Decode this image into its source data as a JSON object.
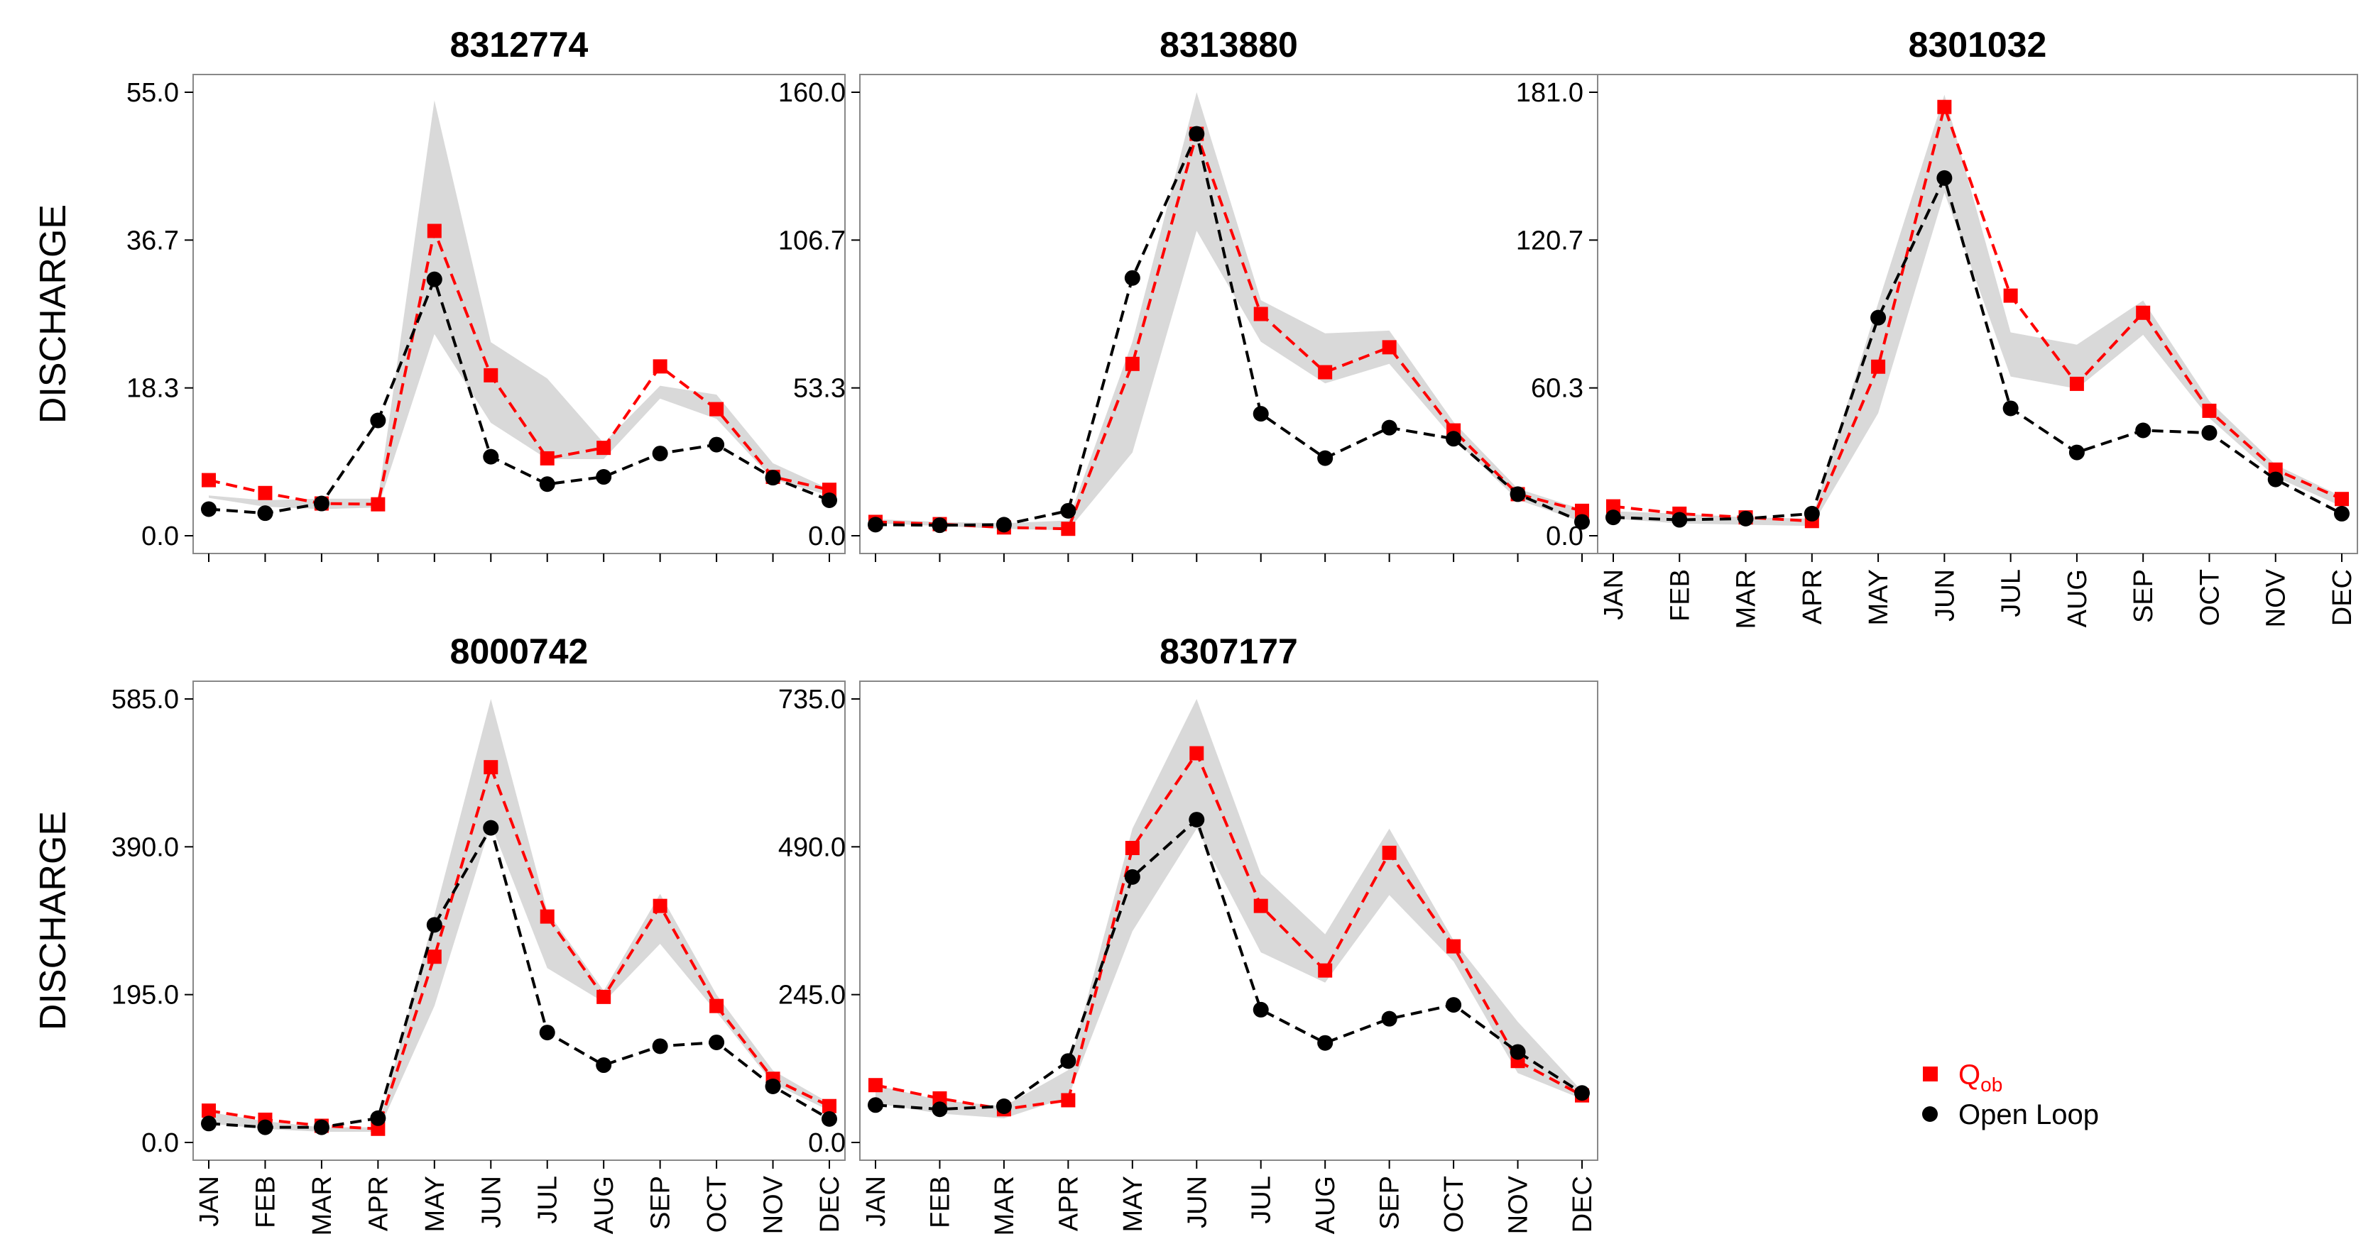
{
  "chart_data": [
    {
      "type": "line",
      "title": "8312774",
      "ylabel": "DISCHARGE",
      "ylim": [
        0,
        55
      ],
      "yticks": [
        "0.0",
        "18.3",
        "36.7",
        "55.0"
      ],
      "categories": [
        "JAN",
        "FEB",
        "MAR",
        "APR",
        "MAY",
        "JUN",
        "JUL",
        "AUG",
        "SEP",
        "OCT",
        "NOV",
        "DEC"
      ],
      "show_xticklabels": false,
      "series": [
        {
          "name": "Q_ob",
          "values": [
            6.9,
            5.3,
            4.0,
            3.9,
            37.8,
            19.9,
            9.6,
            10.9,
            21.0,
            15.7,
            7.3,
            5.7
          ]
        },
        {
          "name": "Open Loop",
          "values": [
            3.3,
            2.8,
            4.0,
            14.3,
            31.8,
            9.8,
            6.4,
            7.3,
            10.2,
            11.3,
            7.2,
            4.4
          ]
        }
      ],
      "band": {
        "lower": [
          4.7,
          3.6,
          3.3,
          3.5,
          25.0,
          14.0,
          9.5,
          9.5,
          17.0,
          14.5,
          7.0,
          5.0
        ],
        "upper": [
          5.0,
          4.4,
          4.6,
          4.6,
          54.0,
          24.0,
          19.5,
          11.5,
          18.6,
          17.5,
          9.0,
          5.8
        ]
      }
    },
    {
      "type": "line",
      "title": "8313880",
      "ylabel": "",
      "ylim": [
        0,
        160
      ],
      "yticks": [
        "0.0",
        "53.3",
        "106.7",
        "160.0"
      ],
      "categories": [
        "JAN",
        "FEB",
        "MAR",
        "APR",
        "MAY",
        "JUN",
        "JUL",
        "AUG",
        "SEP",
        "OCT",
        "NOV",
        "DEC"
      ],
      "show_xticklabels": false,
      "series": [
        {
          "name": "Q_ob",
          "values": [
            5.0,
            4.2,
            3.0,
            2.5,
            62.0,
            145.0,
            80.0,
            59.0,
            68.0,
            38.0,
            15.0,
            9.0
          ]
        },
        {
          "name": "Open Loop",
          "values": [
            4.0,
            3.8,
            4.0,
            9.0,
            93.0,
            145.0,
            44.0,
            28.0,
            39.0,
            35.0,
            15.0,
            5.0
          ]
        }
      ],
      "band": {
        "lower": [
          4.5,
          3.5,
          2.5,
          2.0,
          30.0,
          110.0,
          70.0,
          55.0,
          62.0,
          35.0,
          13.0,
          5.0
        ],
        "upper": [
          6.0,
          5.0,
          4.5,
          5.5,
          70.0,
          160.0,
          85.0,
          73.0,
          74.0,
          41.0,
          17.0,
          9.5
        ]
      }
    },
    {
      "type": "line",
      "title": "8301032",
      "ylabel": "",
      "ylim": [
        0,
        181
      ],
      "yticks": [
        "0.0",
        "60.3",
        "120.7",
        "181.0"
      ],
      "categories": [
        "JAN",
        "FEB",
        "MAR",
        "APR",
        "MAY",
        "JUN",
        "JUL",
        "AUG",
        "SEP",
        "OCT",
        "NOV",
        "DEC"
      ],
      "show_xticklabels": true,
      "series": [
        {
          "name": "Q_ob",
          "values": [
            12.0,
            9.0,
            7.5,
            6.0,
            69.0,
            175.0,
            98.0,
            62.0,
            91.0,
            51.0,
            27.0,
            15.0
          ]
        },
        {
          "name": "Open Loop",
          "values": [
            7.5,
            6.5,
            7.0,
            9.0,
            89.0,
            146.0,
            52.0,
            34.0,
            43.0,
            42.0,
            23.0,
            9.0
          ]
        }
      ],
      "band": {
        "lower": [
          7.0,
          5.0,
          4.5,
          4.0,
          50.0,
          140.0,
          65.0,
          60.0,
          82.0,
          48.0,
          24.0,
          12.0
        ],
        "upper": [
          10.0,
          9.0,
          7.5,
          7.0,
          95.0,
          180.0,
          83.0,
          78.0,
          96.0,
          55.0,
          29.0,
          16.0
        ]
      }
    },
    {
      "type": "line",
      "title": "8000742",
      "ylabel": "DISCHARGE",
      "ylim": [
        0,
        585
      ],
      "yticks": [
        "0.0",
        "195.0",
        "390.0",
        "585.0"
      ],
      "categories": [
        "JAN",
        "FEB",
        "MAR",
        "APR",
        "MAY",
        "JUN",
        "JUL",
        "AUG",
        "SEP",
        "OCT",
        "NOV",
        "DEC"
      ],
      "show_xticklabels": true,
      "series": [
        {
          "name": "Q_ob",
          "values": [
            42.0,
            30.0,
            22.0,
            18.0,
            245.0,
            495.0,
            298.0,
            192.0,
            312.0,
            180.0,
            84.0,
            48.0
          ]
        },
        {
          "name": "Open Loop",
          "values": [
            25.0,
            20.0,
            20.0,
            32.0,
            287.0,
            415.0,
            145.0,
            102.0,
            127.0,
            132.0,
            74.0,
            31.0
          ]
        }
      ],
      "band": {
        "lower": [
          25.0,
          18.0,
          14.0,
          14.0,
          180.0,
          420.0,
          230.0,
          185.0,
          262.0,
          172.0,
          78.0,
          42.0
        ],
        "upper": [
          40.0,
          28.0,
          20.0,
          20.0,
          300.0,
          585.0,
          305.0,
          200.0,
          328.0,
          195.0,
          95.0,
          52.0
        ]
      }
    },
    {
      "type": "line",
      "title": "8307177",
      "ylabel": "",
      "ylim": [
        0,
        735
      ],
      "yticks": [
        "0.0",
        "245.0",
        "490.0",
        "735.0"
      ],
      "categories": [
        "JAN",
        "FEB",
        "MAR",
        "APR",
        "MAY",
        "JUN",
        "JUL",
        "AUG",
        "SEP",
        "OCT",
        "NOV",
        "DEC"
      ],
      "show_xticklabels": true,
      "series": [
        {
          "name": "Q_ob",
          "values": [
            95.0,
            73.0,
            55.0,
            70.0,
            488.0,
            645.0,
            392.0,
            285.0,
            480.0,
            325.0,
            135.0,
            78.0
          ]
        },
        {
          "name": "Open Loop",
          "values": [
            62.0,
            55.0,
            60.0,
            135.0,
            440.0,
            535.0,
            220.0,
            165.0,
            205.0,
            228.0,
            150.0,
            82.0
          ]
        }
      ],
      "band": {
        "lower": [
          65.0,
          48.0,
          40.0,
          75.0,
          350.0,
          520.0,
          315.0,
          265.0,
          410.0,
          300.0,
          115.0,
          72.0
        ],
        "upper": [
          95.0,
          70.0,
          60.0,
          120.0,
          520.0,
          735.0,
          445.0,
          345.0,
          520.0,
          335.0,
          200.0,
          85.0
        ]
      }
    }
  ],
  "legend": {
    "items": [
      {
        "label": "Q",
        "subscript": "ob",
        "color": "#ff0000",
        "marker": "square"
      },
      {
        "label": "Open Loop",
        "color": "#000000",
        "marker": "circle"
      }
    ],
    "placement": "bottom-right"
  },
  "colors": {
    "observed": "#ff0000",
    "openloop": "#000000",
    "band": "#d9d9d9"
  }
}
